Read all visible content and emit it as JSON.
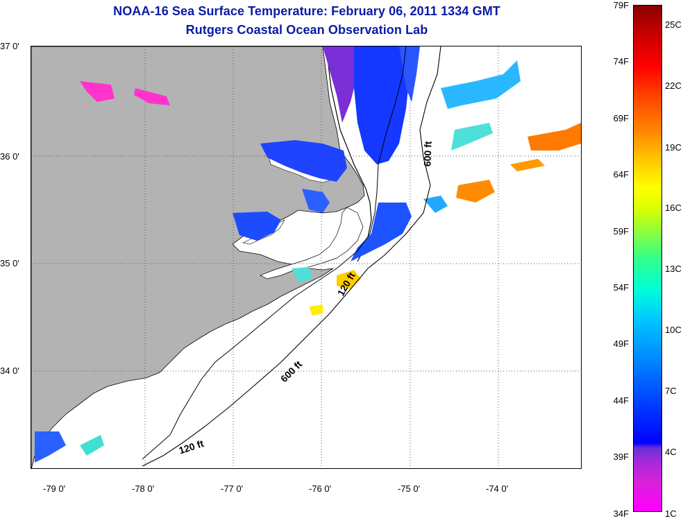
{
  "title": {
    "line1": "NOAA-16 Sea Surface Temperature:  February 06, 2011 1334 GMT",
    "line2": "Rutgers Coastal Ocean Observation Lab"
  },
  "map": {
    "lat_labels": [
      "37 0'",
      "36 0'",
      "35 0'",
      "34 0'"
    ],
    "lon_labels": [
      "-79 0'",
      "-78 0'",
      "-77 0'",
      "-76 0'",
      "-75 0'",
      "-74 0'"
    ],
    "contour_labels": [
      "600 ft",
      "120 ft",
      "600 ft",
      "120 ft"
    ],
    "colors": {
      "land": "#b3b3b3",
      "ocean": "#ffffff",
      "grid": "#555555"
    }
  },
  "colorbar": {
    "fahrenheit": [
      "79F",
      "74F",
      "69F",
      "64F",
      "59F",
      "54F",
      "49F",
      "44F",
      "39F",
      "34F"
    ],
    "celsius": [
      "25C",
      "22C",
      "19C",
      "16C",
      "13C",
      "10C",
      "7C",
      "4C",
      "1C"
    ]
  }
}
